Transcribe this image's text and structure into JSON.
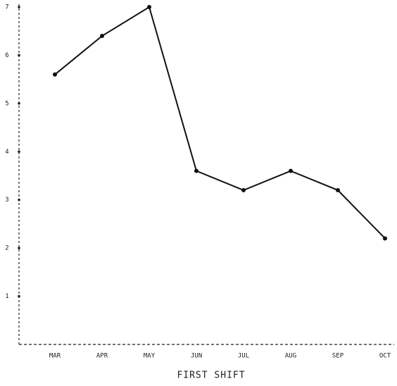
{
  "chart_data": {
    "type": "line",
    "xlabel": "FIRST SHIFT",
    "categories": [
      "MAR",
      "APR",
      "MAY",
      "JUN",
      "JUL",
      "AUG",
      "SEP",
      "OCT"
    ],
    "values": [
      5.6,
      6.4,
      7.0,
      3.6,
      3.2,
      3.6,
      3.2,
      2.2
    ],
    "color": "#111111",
    "ylim": [
      0,
      7
    ],
    "yticks": [
      1,
      2,
      3,
      4,
      5,
      6,
      7
    ]
  }
}
